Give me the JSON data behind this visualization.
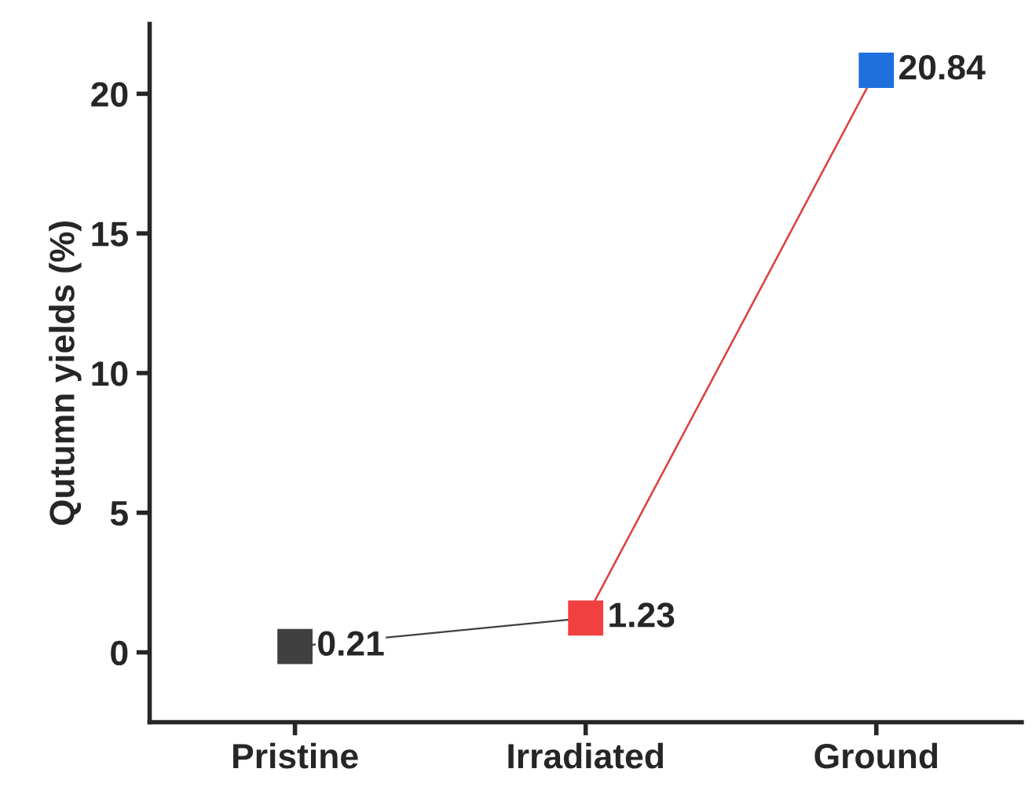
{
  "chart_data": {
    "type": "line",
    "ylabel": "Qutumn yields (%)",
    "categories": [
      "Pristine",
      "Irradiated",
      "Ground"
    ],
    "values": [
      0.21,
      1.23,
      20.84
    ],
    "colors": [
      "#404040",
      "#f04040",
      "#1f6fdc"
    ],
    "marker": "square",
    "data_labels": true,
    "ylim": [
      -2.5,
      22.5
    ],
    "yticks": [
      0,
      5,
      10,
      15,
      20
    ],
    "grid": false,
    "legend": false
  }
}
